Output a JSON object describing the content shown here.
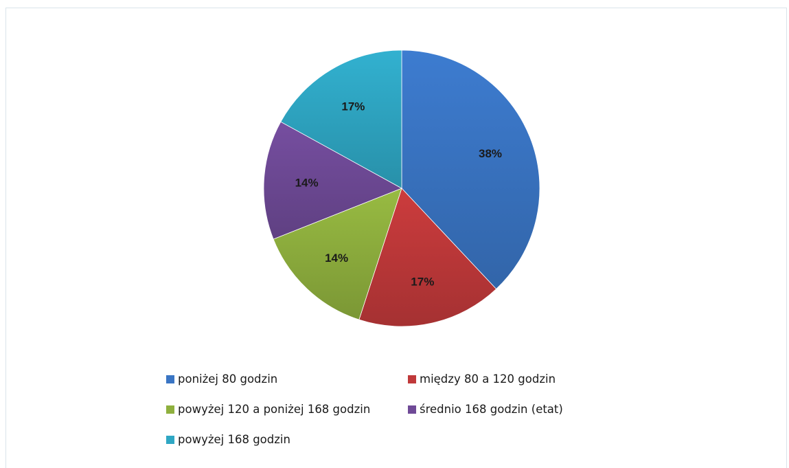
{
  "chart_data": {
    "type": "pie",
    "title": "",
    "categories": [
      "poniżej 80 godzin",
      "między 80 a 120 godzin",
      "powyżej 120 a poniżej 168 godzin",
      "średnio 168 godzin (etat)",
      "powyżej 168 godzin"
    ],
    "values": [
      38,
      17,
      14,
      14,
      17
    ],
    "value_labels": [
      "38%",
      "17%",
      "14%",
      "14%",
      "17%"
    ],
    "colors": [
      "#3a75c4",
      "#c0393a",
      "#8fb03e",
      "#6f4a97",
      "#2fa7c4"
    ],
    "legend_placement": "bottom"
  },
  "legend": {
    "items": [
      {
        "label": "poniżej 80 godzin",
        "color": "#3a75c4"
      },
      {
        "label": "między 80 a 120 godzin",
        "color": "#c0393a"
      },
      {
        "label": "powyżej 120 a poniżej 168 godzin",
        "color": "#8fb03e"
      },
      {
        "label": "średnio 168 godzin (etat)",
        "color": "#6f4a97"
      },
      {
        "label": "powyżej 168 godzin",
        "color": "#2fa7c4"
      }
    ]
  }
}
